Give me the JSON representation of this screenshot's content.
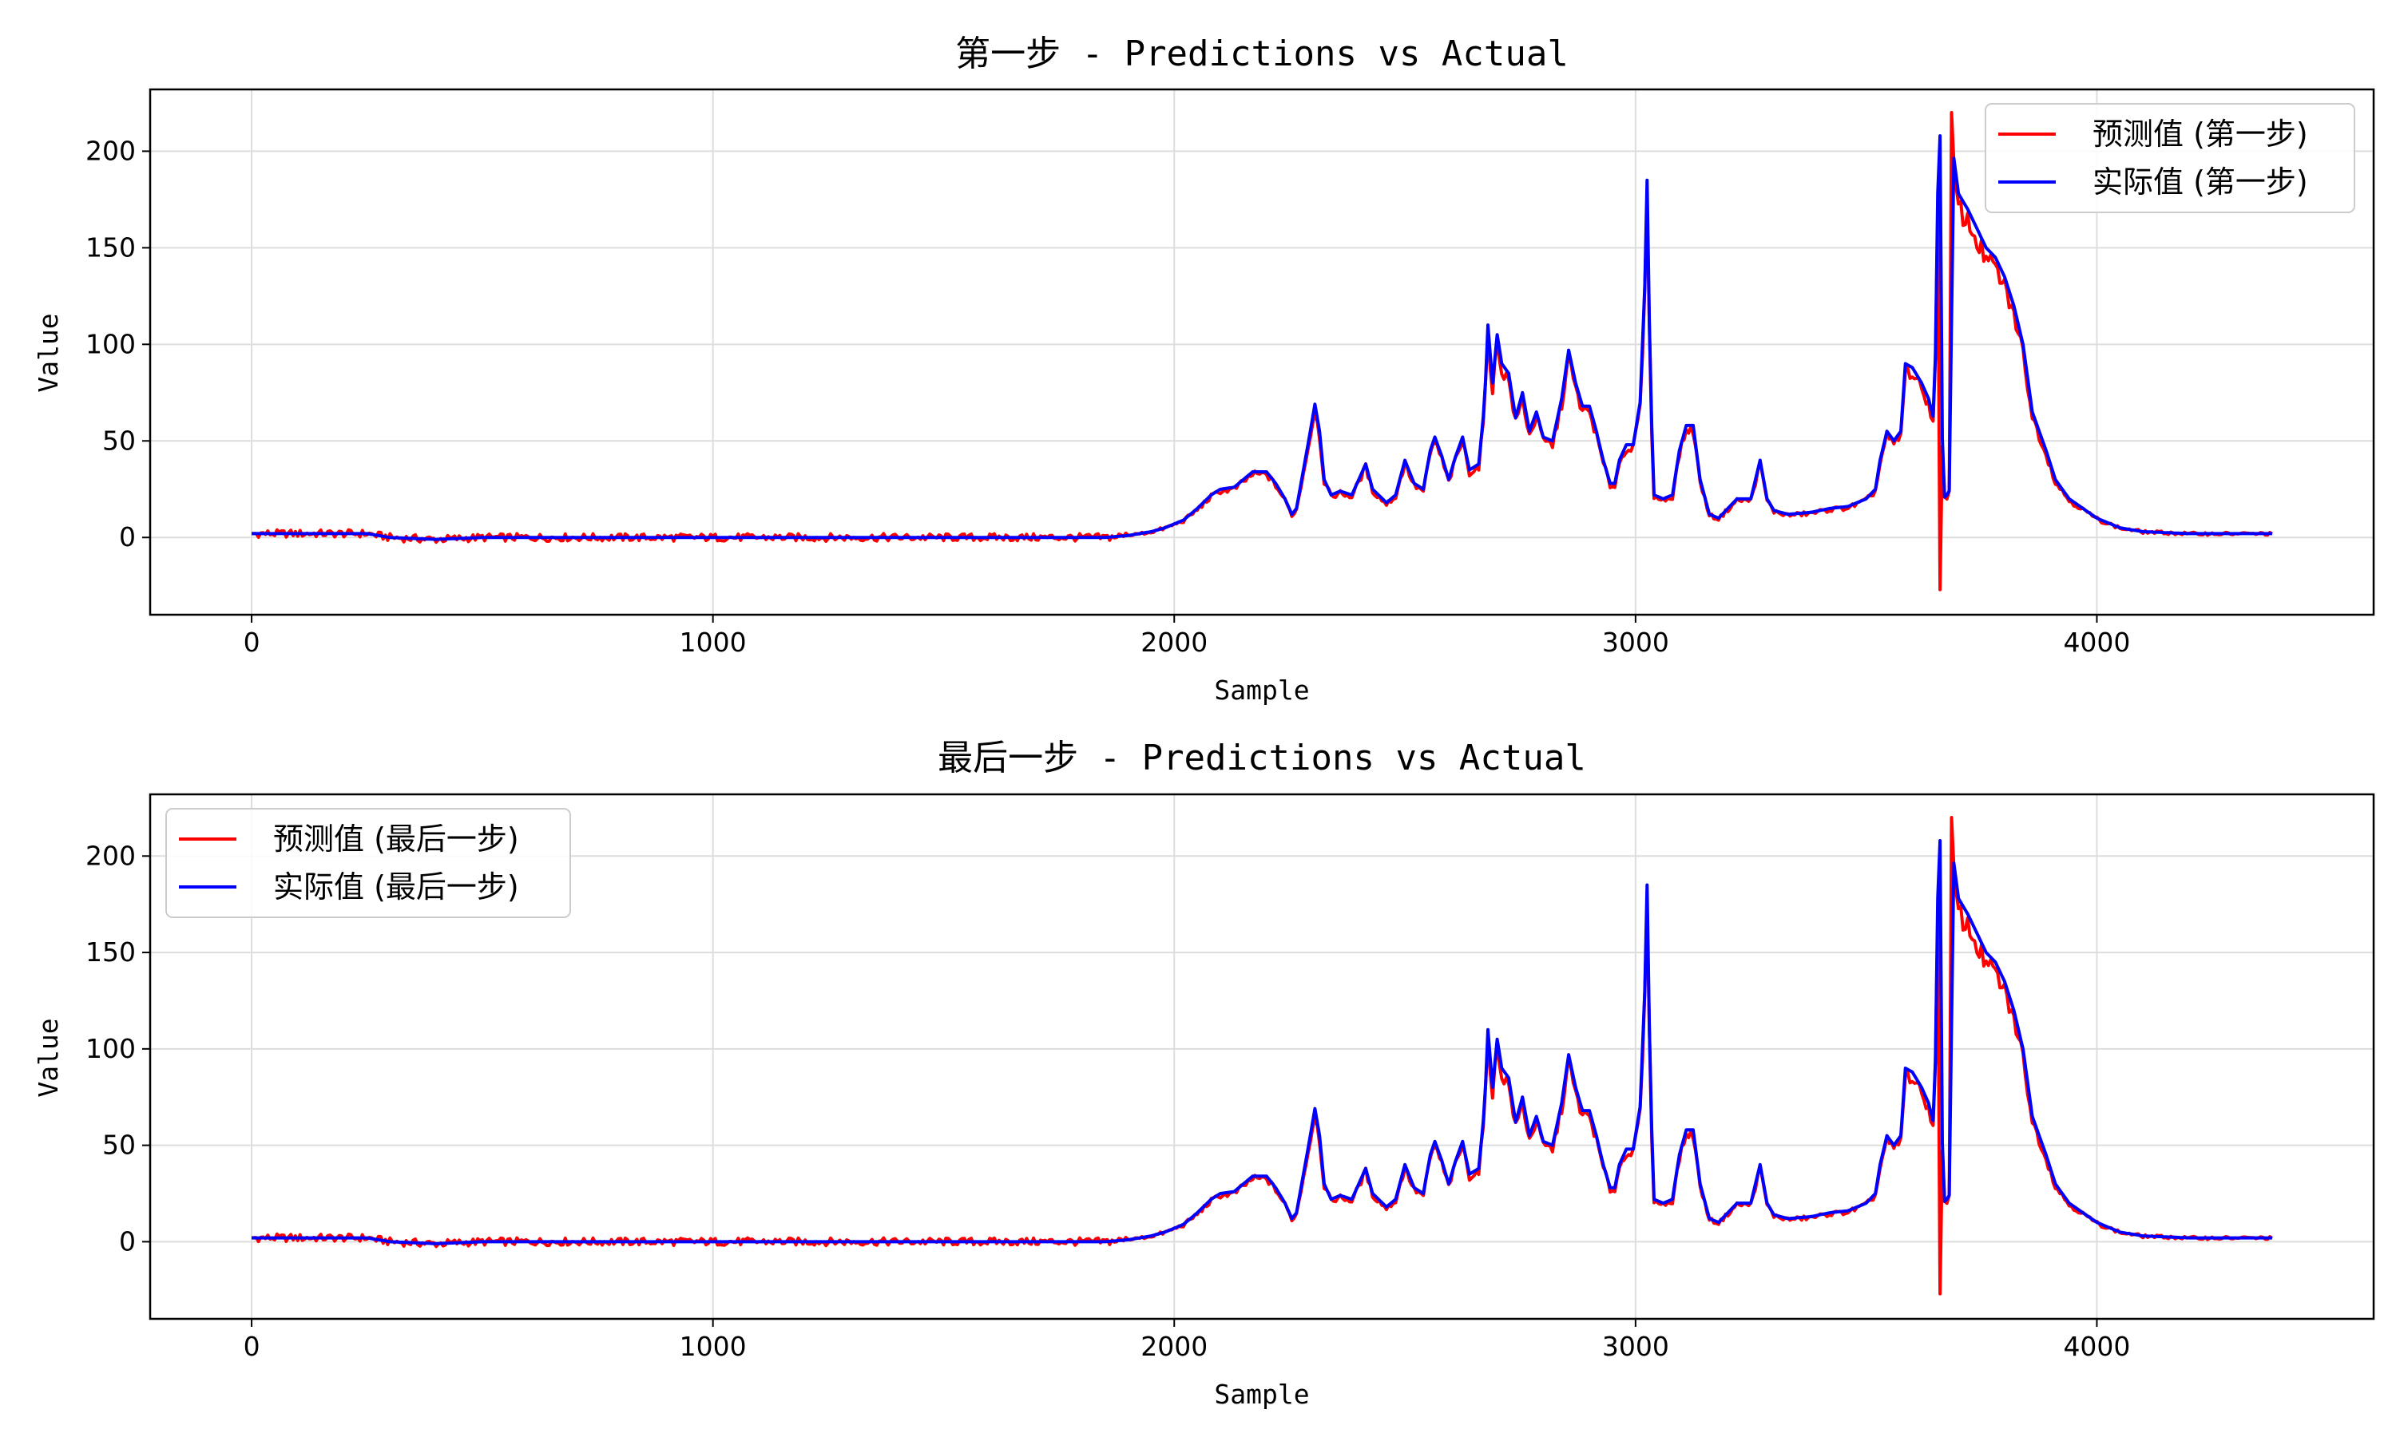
{
  "chart_data": [
    {
      "type": "line",
      "title": "第一步 - Predictions vs Actual",
      "xlabel": "Sample",
      "ylabel": "Value",
      "xlim": [
        -220,
        4600
      ],
      "ylim": [
        -40,
        232
      ],
      "xticks": [
        0,
        1000,
        2000,
        3000,
        4000
      ],
      "yticks": [
        0,
        50,
        100,
        150,
        200
      ],
      "grid": true,
      "legend_position": "top-right",
      "colors": {
        "pred": "#ff0000",
        "actual": "#0000ff"
      },
      "series": [
        {
          "name": "预测值 (第一步)",
          "color": "#ff0000",
          "key": "pred"
        },
        {
          "name": "实际值 (第一步)",
          "color": "#0000ff",
          "key": "actual"
        }
      ]
    },
    {
      "type": "line",
      "title": "最后一步 - Predictions vs Actual",
      "xlabel": "Sample",
      "ylabel": "Value",
      "xlim": [
        -220,
        4600
      ],
      "ylim": [
        -40,
        232
      ],
      "xticks": [
        0,
        1000,
        2000,
        3000,
        4000
      ],
      "yticks": [
        0,
        50,
        100,
        150,
        200
      ],
      "grid": true,
      "legend_position": "top-left",
      "colors": {
        "pred": "#ff0000",
        "actual": "#0000ff"
      },
      "series": [
        {
          "name": "预测值 (最后一步)",
          "color": "#ff0000",
          "key": "pred"
        },
        {
          "name": "实际值 (最后一步)",
          "color": "#0000ff",
          "key": "actual"
        }
      ]
    }
  ],
  "actual_points": [
    [
      0,
      2
    ],
    [
      50,
      2
    ],
    [
      100,
      2
    ],
    [
      150,
      2
    ],
    [
      200,
      2
    ],
    [
      250,
      2
    ],
    [
      300,
      0
    ],
    [
      400,
      -1
    ],
    [
      500,
      0
    ],
    [
      600,
      0
    ],
    [
      700,
      0
    ],
    [
      800,
      0
    ],
    [
      900,
      0
    ],
    [
      1000,
      0
    ],
    [
      1200,
      0
    ],
    [
      1400,
      0
    ],
    [
      1600,
      0
    ],
    [
      1700,
      0
    ],
    [
      1850,
      0
    ],
    [
      1900,
      1
    ],
    [
      1950,
      3
    ],
    [
      1980,
      5
    ],
    [
      2000,
      7
    ],
    [
      2020,
      9
    ],
    [
      2050,
      15
    ],
    [
      2080,
      22
    ],
    [
      2100,
      25
    ],
    [
      2130,
      26
    ],
    [
      2150,
      30
    ],
    [
      2170,
      34
    ],
    [
      2200,
      34
    ],
    [
      2220,
      28
    ],
    [
      2240,
      20
    ],
    [
      2255,
      12
    ],
    [
      2265,
      15
    ],
    [
      2280,
      35
    ],
    [
      2295,
      55
    ],
    [
      2305,
      69
    ],
    [
      2315,
      55
    ],
    [
      2325,
      30
    ],
    [
      2340,
      22
    ],
    [
      2360,
      24
    ],
    [
      2385,
      22
    ],
    [
      2400,
      30
    ],
    [
      2415,
      38
    ],
    [
      2430,
      25
    ],
    [
      2460,
      18
    ],
    [
      2480,
      22
    ],
    [
      2500,
      40
    ],
    [
      2520,
      28
    ],
    [
      2540,
      25
    ],
    [
      2555,
      45
    ],
    [
      2565,
      52
    ],
    [
      2580,
      42
    ],
    [
      2595,
      30
    ],
    [
      2610,
      42
    ],
    [
      2625,
      52
    ],
    [
      2640,
      35
    ],
    [
      2660,
      38
    ],
    [
      2673,
      70
    ],
    [
      2680,
      110
    ],
    [
      2690,
      80
    ],
    [
      2700,
      105
    ],
    [
      2710,
      90
    ],
    [
      2725,
      85
    ],
    [
      2740,
      62
    ],
    [
      2755,
      75
    ],
    [
      2770,
      55
    ],
    [
      2785,
      65
    ],
    [
      2800,
      52
    ],
    [
      2820,
      50
    ],
    [
      2840,
      72
    ],
    [
      2855,
      97
    ],
    [
      2870,
      80
    ],
    [
      2885,
      68
    ],
    [
      2900,
      68
    ],
    [
      2915,
      55
    ],
    [
      2930,
      40
    ],
    [
      2945,
      28
    ],
    [
      2955,
      28
    ],
    [
      2965,
      40
    ],
    [
      2980,
      48
    ],
    [
      2995,
      48
    ],
    [
      3010,
      70
    ],
    [
      3020,
      130
    ],
    [
      3025,
      185
    ],
    [
      3032,
      80
    ],
    [
      3040,
      22
    ],
    [
      3060,
      20
    ],
    [
      3080,
      22
    ],
    [
      3095,
      45
    ],
    [
      3110,
      58
    ],
    [
      3125,
      58
    ],
    [
      3140,
      30
    ],
    [
      3160,
      12
    ],
    [
      3180,
      10
    ],
    [
      3200,
      15
    ],
    [
      3220,
      20
    ],
    [
      3250,
      20
    ],
    [
      3270,
      40
    ],
    [
      3285,
      20
    ],
    [
      3300,
      14
    ],
    [
      3330,
      12
    ],
    [
      3380,
      13
    ],
    [
      3420,
      15
    ],
    [
      3460,
      16
    ],
    [
      3500,
      20
    ],
    [
      3520,
      25
    ],
    [
      3530,
      40
    ],
    [
      3545,
      55
    ],
    [
      3560,
      50
    ],
    [
      3575,
      55
    ],
    [
      3585,
      90
    ],
    [
      3600,
      88
    ],
    [
      3620,
      80
    ],
    [
      3635,
      72
    ],
    [
      3648,
      60
    ],
    [
      3655,
      178
    ],
    [
      3660,
      208
    ],
    [
      3666,
      20
    ],
    [
      3675,
      22
    ],
    [
      3682,
      25
    ],
    [
      3688,
      200
    ],
    [
      3700,
      178
    ],
    [
      3720,
      170
    ],
    [
      3740,
      160
    ],
    [
      3760,
      150
    ],
    [
      3780,
      145
    ],
    [
      3800,
      135
    ],
    [
      3820,
      120
    ],
    [
      3840,
      100
    ],
    [
      3860,
      65
    ],
    [
      3875,
      55
    ],
    [
      3890,
      45
    ],
    [
      3910,
      30
    ],
    [
      3940,
      20
    ],
    [
      3970,
      15
    ],
    [
      4000,
      10
    ],
    [
      4050,
      5
    ],
    [
      4100,
      3
    ],
    [
      4200,
      2
    ],
    [
      4300,
      2
    ],
    [
      4380,
      2
    ]
  ]
}
